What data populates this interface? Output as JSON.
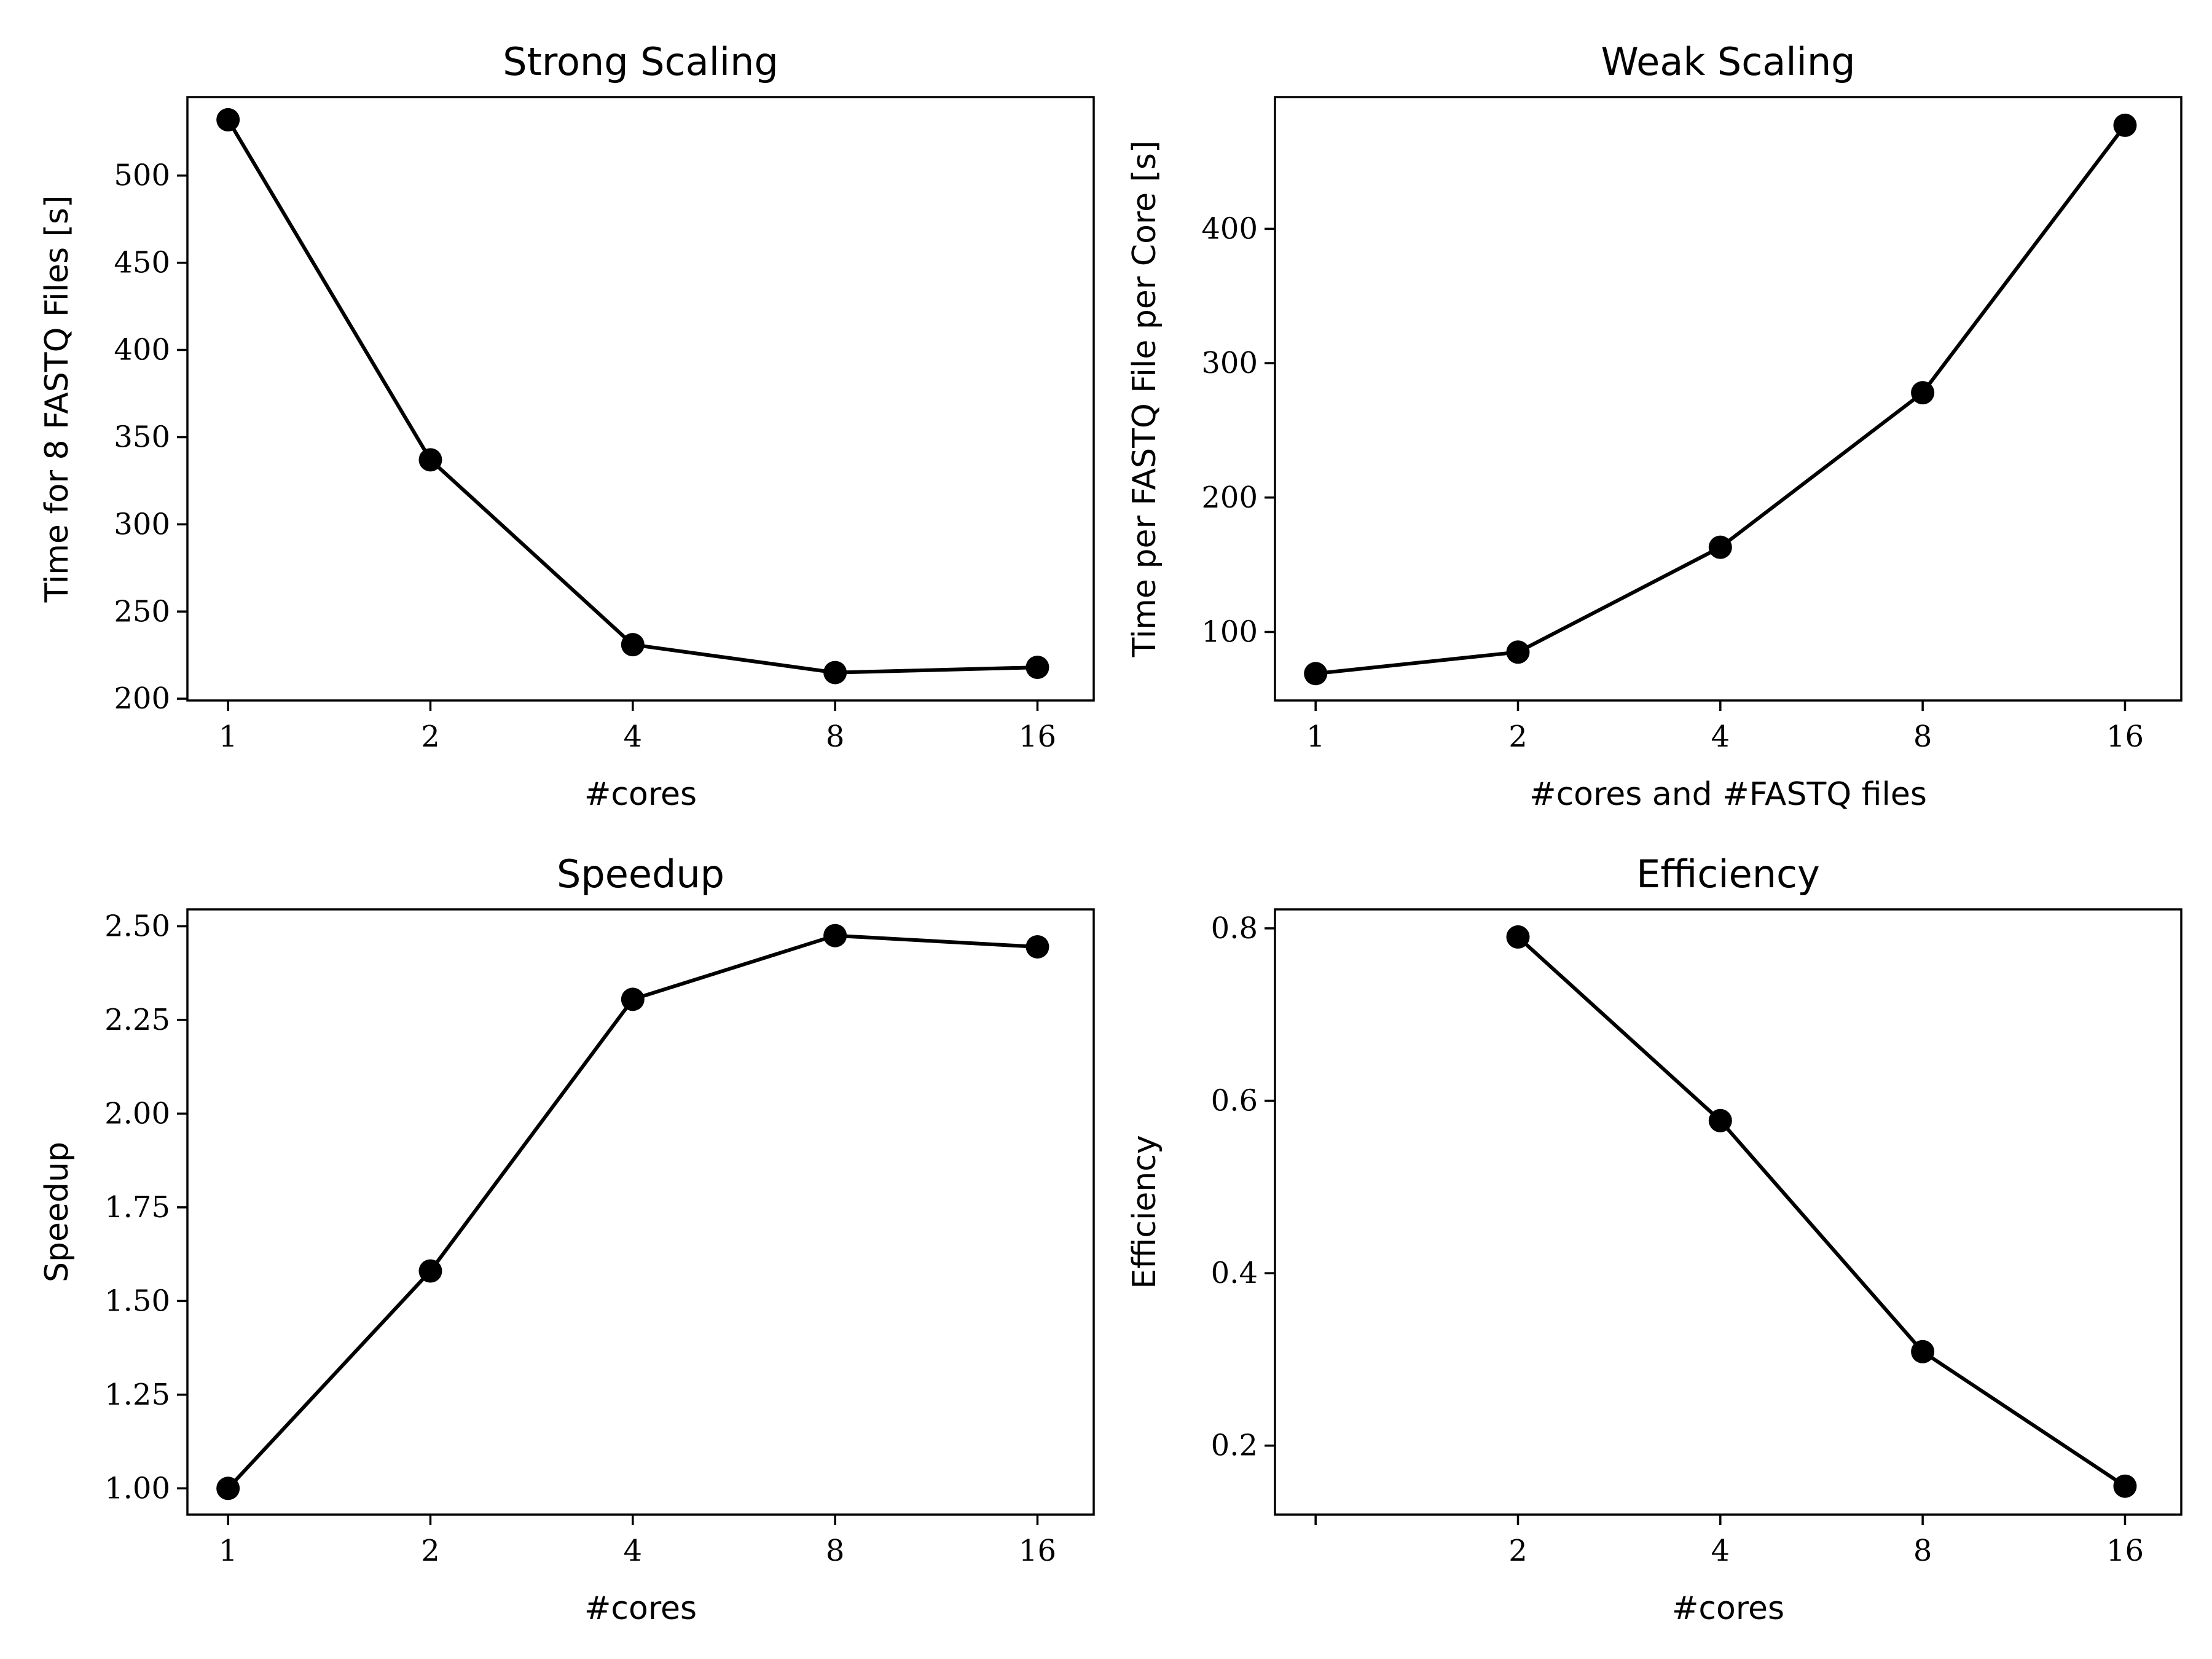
{
  "colors": {
    "line": "#000000",
    "marker": "#000000",
    "axes": "#000000",
    "background": "#ffffff"
  },
  "chart_data": [
    {
      "type": "line",
      "title": "Strong Scaling",
      "xlabel": "#cores",
      "ylabel": "Time for 8 FASTQ Files [s]",
      "x_scale": "log2",
      "x_ticks": [
        1,
        2,
        4,
        8,
        16
      ],
      "x_tick_labels": [
        "1",
        "2",
        "4",
        "8",
        "16"
      ],
      "xlim": [
        0.87,
        19.4
      ],
      "y_ticks": [
        200,
        250,
        300,
        350,
        400,
        450,
        500
      ],
      "y_tick_labels": [
        "200",
        "250",
        "300",
        "350",
        "400",
        "450",
        "500"
      ],
      "ylim": [
        199,
        545
      ],
      "grid": false,
      "series": [
        {
          "x": [
            1,
            2,
            4,
            8,
            16
          ],
          "y": [
            532,
            337,
            231,
            215,
            218
          ]
        }
      ]
    },
    {
      "type": "line",
      "title": "Weak Scaling",
      "xlabel": "#cores and #FASTQ files",
      "ylabel": "Time per FASTQ File per Core [s]",
      "x_scale": "log2",
      "x_ticks": [
        1,
        2,
        4,
        8,
        16
      ],
      "x_tick_labels": [
        "1",
        "2",
        "4",
        "8",
        "16"
      ],
      "xlim": [
        0.87,
        19.4
      ],
      "y_ticks": [
        100,
        200,
        300,
        400
      ],
      "y_tick_labels": [
        "100",
        "200",
        "300",
        "400"
      ],
      "ylim": [
        49,
        498
      ],
      "grid": false,
      "series": [
        {
          "x": [
            1,
            2,
            4,
            8,
            16
          ],
          "y": [
            69,
            85,
            163,
            278,
            477
          ]
        }
      ]
    },
    {
      "type": "line",
      "title": "Speedup",
      "xlabel": "#cores",
      "ylabel": "Speedup",
      "x_scale": "log2",
      "x_ticks": [
        1,
        2,
        4,
        8,
        16
      ],
      "x_tick_labels": [
        "1",
        "2",
        "4",
        "8",
        "16"
      ],
      "xlim": [
        0.87,
        19.4
      ],
      "y_ticks": [
        1.0,
        1.25,
        1.5,
        1.75,
        2.0,
        2.25,
        2.5
      ],
      "y_tick_labels": [
        "1.00",
        "1.25",
        "1.50",
        "1.75",
        "2.00",
        "2.25",
        "2.50"
      ],
      "ylim": [
        0.93,
        2.545
      ],
      "grid": false,
      "series": [
        {
          "x": [
            1,
            2,
            4,
            8,
            16
          ],
          "y": [
            1.0,
            1.58,
            2.305,
            2.475,
            2.445
          ]
        }
      ]
    },
    {
      "type": "line",
      "title": "Efficiency",
      "xlabel": "#cores",
      "ylabel": "Efficiency",
      "x_scale": "log2",
      "x_ticks": [
        1,
        2,
        4,
        8,
        16
      ],
      "x_tick_labels": [
        "",
        "2",
        "4",
        "8",
        "16"
      ],
      "xlim": [
        0.87,
        19.4
      ],
      "y_ticks": [
        0.2,
        0.4,
        0.6,
        0.8
      ],
      "y_tick_labels": [
        "0.2",
        "0.4",
        "0.6",
        "0.8"
      ],
      "ylim": [
        0.12,
        0.822
      ],
      "grid": false,
      "series": [
        {
          "x": [
            2,
            4,
            8,
            16
          ],
          "y": [
            0.79,
            0.577,
            0.309,
            0.153
          ]
        }
      ]
    }
  ]
}
